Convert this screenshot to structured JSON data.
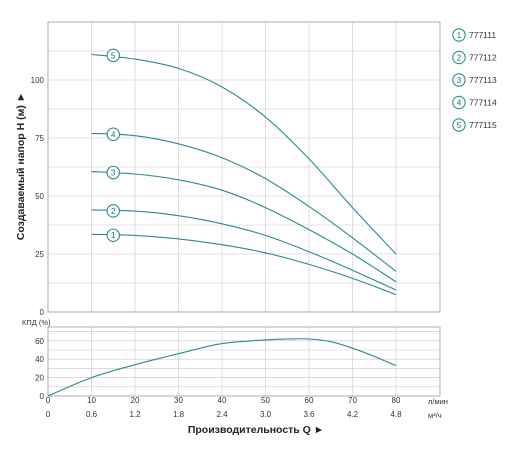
{
  "chart_data": [
    {
      "type": "line",
      "xlabel": "Производительность Q ►",
      "ylabel": "Создаваемый напор H (м) ►",
      "xlim": [
        0,
        80
      ],
      "ylim": [
        0,
        125
      ],
      "x_ticks": [
        0,
        10,
        20,
        30,
        40,
        50,
        60,
        70,
        80
      ],
      "y_ticks": [
        0,
        25,
        50,
        75,
        100
      ],
      "x_unit_primary": "л/мин",
      "x_ticks_secondary": [
        "0",
        "0.6",
        "1.2",
        "1.8",
        "2.4",
        "3.0",
        "3.6",
        "4.2",
        "4.8"
      ],
      "x_unit_secondary": "м³/ч",
      "grid": true,
      "legend_position": "right",
      "series": [
        {
          "name": "777111",
          "badge": "1",
          "x": [
            10,
            20,
            30,
            40,
            50,
            60,
            70,
            80
          ],
          "y": [
            33.5,
            33,
            31.5,
            29,
            25.5,
            20.5,
            14.5,
            7.5
          ]
        },
        {
          "name": "777112",
          "badge": "2",
          "x": [
            10,
            20,
            30,
            40,
            50,
            60,
            70,
            80
          ],
          "y": [
            44,
            43.5,
            41.5,
            38,
            33,
            26,
            18,
            9.5
          ]
        },
        {
          "name": "777113",
          "badge": "3",
          "x": [
            10,
            20,
            30,
            40,
            50,
            60,
            70,
            80
          ],
          "y": [
            60.5,
            59.5,
            57,
            52.5,
            45,
            35.5,
            25,
            13
          ]
        },
        {
          "name": "777114",
          "badge": "4",
          "x": [
            10,
            20,
            30,
            40,
            50,
            60,
            70,
            80
          ],
          "y": [
            77,
            76,
            72.5,
            66.5,
            57.5,
            45.5,
            32,
            17.5
          ]
        },
        {
          "name": "777115",
          "badge": "5",
          "x": [
            10,
            20,
            30,
            40,
            50,
            60,
            70,
            80
          ],
          "y": [
            111,
            109,
            105,
            97,
            84,
            66,
            45,
            25
          ]
        }
      ]
    },
    {
      "type": "line",
      "ylabel": "КПД (%)",
      "xlim": [
        0,
        80
      ],
      "ylim": [
        0,
        75
      ],
      "y_ticks": [
        0,
        20,
        40,
        60
      ],
      "grid": true,
      "series": [
        {
          "x": [
            0,
            10,
            20,
            30,
            40,
            50,
            55,
            60,
            65,
            70,
            75,
            80
          ],
          "y": [
            0,
            20,
            34,
            46,
            57,
            61,
            62,
            62,
            59,
            52,
            43,
            33
          ]
        }
      ]
    }
  ],
  "colors": {
    "curve": "#2a8a93",
    "grid": "#c8c8c8",
    "frame": "#9a9a9a"
  }
}
